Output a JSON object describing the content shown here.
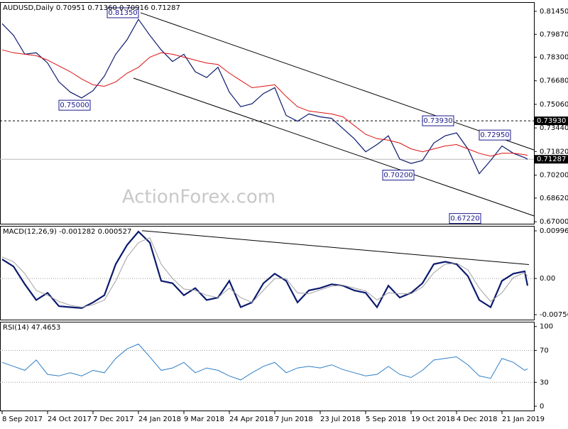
{
  "chart_data": [
    {
      "type": "line",
      "title": "AUDUSD,Daily  0.70951 0.71360 0.70916 0.71287",
      "watermark": "ActionForex.com",
      "x": [
        0,
        8,
        16,
        24,
        32,
        40,
        48,
        56,
        64,
        72,
        80,
        88,
        96,
        104,
        112,
        120,
        128,
        136,
        144,
        152,
        160,
        168,
        176,
        184,
        192,
        200,
        208,
        216,
        224,
        232,
        240,
        248,
        256,
        264,
        272,
        280,
        288,
        296,
        304,
        312,
        320,
        328,
        336,
        344,
        352,
        360,
        368,
        370
      ],
      "xlim": [
        -1.5,
        374.5
      ],
      "xticks": [
        {
          "value": 0,
          "label": "8 Sep 2017"
        },
        {
          "value": 32,
          "label": "24 Oct 2017"
        },
        {
          "value": 64,
          "label": "7 Dec 2017"
        },
        {
          "value": 96,
          "label": "24 Jan 2018"
        },
        {
          "value": 128,
          "label": "9 Mar 2018"
        },
        {
          "value": 160,
          "label": "24 Apr 2018"
        },
        {
          "value": 192,
          "label": "7 Jun 2018"
        },
        {
          "value": 224,
          "label": "23 Jul 2018"
        },
        {
          "value": 256,
          "label": "5 Sep 2018"
        },
        {
          "value": 288,
          "label": "19 Oct 2018"
        },
        {
          "value": 320,
          "label": "4 Dec 2018"
        },
        {
          "value": 352,
          "label": "21 Jan 2019"
        }
      ],
      "ylim": [
        0.6686,
        0.8208
      ],
      "yticks": [
        {
          "value": 0.8145,
          "label": "0.81450"
        },
        {
          "value": 0.7987,
          "label": "0.79870"
        },
        {
          "value": 0.783,
          "label": "0.78300"
        },
        {
          "value": 0.7668,
          "label": "0.76680"
        },
        {
          "value": 0.7506,
          "label": "0.75060"
        },
        {
          "value": 0.7344,
          "label": "0.73440"
        },
        {
          "value": 0.7182,
          "label": "0.71820"
        },
        {
          "value": 0.702,
          "label": "0.70200"
        },
        {
          "value": 0.6862,
          "label": "0.68620"
        },
        {
          "value": 0.67,
          "label": "0.67000"
        }
      ],
      "series": [
        {
          "color": "#0b1a6e",
          "width": 1.2,
          "values": [
            0.806,
            0.798,
            0.785,
            0.786,
            0.779,
            0.766,
            0.759,
            0.755,
            0.76,
            0.77,
            0.785,
            0.795,
            0.809,
            0.798,
            0.788,
            0.78,
            0.785,
            0.773,
            0.769,
            0.776,
            0.759,
            0.749,
            0.751,
            0.758,
            0.762,
            0.743,
            0.739,
            0.744,
            0.742,
            0.741,
            0.734,
            0.727,
            0.718,
            0.723,
            0.729,
            0.713,
            0.71,
            0.712,
            0.724,
            0.729,
            0.731,
            0.72,
            0.703,
            0.712,
            0.722,
            0.717,
            0.714,
            0.71287
          ]
        },
        {
          "color": "#dd1111",
          "width": 1,
          "values": [
            0.788,
            0.786,
            0.785,
            0.784,
            0.781,
            0.777,
            0.773,
            0.768,
            0.764,
            0.763,
            0.766,
            0.772,
            0.776,
            0.783,
            0.786,
            0.785,
            0.783,
            0.781,
            0.779,
            0.778,
            0.772,
            0.767,
            0.762,
            0.763,
            0.764,
            0.756,
            0.749,
            0.746,
            0.745,
            0.744,
            0.742,
            0.736,
            0.73,
            0.727,
            0.726,
            0.724,
            0.72,
            0.718,
            0.72,
            0.722,
            0.723,
            0.72,
            0.717,
            0.715,
            0.717,
            0.717,
            0.716,
            0.7155
          ]
        }
      ],
      "hlines": [
        {
          "value": 0.7393,
          "label": "0.73930",
          "style": "dashed"
        },
        {
          "value": 0.71287,
          "label": "0.71287",
          "style": "solid"
        }
      ],
      "trendlines": [
        {
          "x": [
            97.5,
            376
          ],
          "y": [
            0.8135,
            0.7188
          ]
        },
        {
          "x": [
            92.5,
            376
          ],
          "y": [
            0.7686,
            0.6735
          ]
        }
      ],
      "annotations": [
        {
          "x": 74,
          "value": 0.8135,
          "label": "0.81350"
        },
        {
          "x": 40,
          "value": 0.75,
          "label": "0.75000"
        },
        {
          "x": 296,
          "value": 0.7393,
          "label": "0.73930"
        },
        {
          "x": 336,
          "value": 0.7295,
          "label": "0.72950"
        },
        {
          "x": 268,
          "value": 0.702,
          "label": "0.70200"
        },
        {
          "x": 315,
          "value": 0.6722,
          "label": "0.67220"
        }
      ]
    },
    {
      "type": "line",
      "title": "MACD(12,26,9) -0.001282 0.000527",
      "x": [
        0,
        8,
        16,
        24,
        32,
        40,
        48,
        56,
        64,
        72,
        80,
        88,
        96,
        104,
        112,
        120,
        128,
        136,
        144,
        152,
        160,
        168,
        176,
        184,
        192,
        200,
        208,
        216,
        224,
        232,
        240,
        248,
        256,
        264,
        272,
        280,
        288,
        296,
        304,
        312,
        320,
        328,
        336,
        344,
        352,
        360,
        368,
        370
      ],
      "xlim": [
        -1.5,
        374.5
      ],
      "ylim": [
        -0.0086,
        0.011
      ],
      "yticks": [
        0.009964,
        {
          "value": 0,
          "label": "0.00"
        },
        -0.00756
      ],
      "levels": [
        0
      ],
      "series": [
        {
          "color": "#0b1a6e",
          "width": 2.2,
          "values": [
            0.004,
            0.0025,
            -0.0012,
            -0.0045,
            -0.003,
            -0.0058,
            -0.006,
            -0.0062,
            -0.005,
            -0.0035,
            0.003,
            0.007,
            0.0098,
            0.0075,
            -0.0005,
            -0.001,
            -0.0035,
            -0.002,
            -0.0045,
            -0.004,
            -0.0005,
            -0.006,
            -0.005,
            -0.001,
            0.001,
            -0.0005,
            -0.005,
            -0.0025,
            -0.002,
            -0.0012,
            -0.0015,
            -0.0025,
            -0.003,
            -0.006,
            -0.0015,
            -0.004,
            -0.003,
            -0.001,
            0.003,
            0.0035,
            0.003,
            0.0005,
            -0.0045,
            -0.006,
            -0.0005,
            0.001,
            0.0015,
            -0.0015
          ]
        },
        {
          "color": "#a0a0a0",
          "width": 1,
          "values": [
            0.0045,
            0.0035,
            0.001,
            -0.0025,
            -0.0035,
            -0.0048,
            -0.0056,
            -0.006,
            -0.0055,
            -0.0045,
            -0.0005,
            0.0045,
            0.0075,
            0.0085,
            0.003,
            0,
            -0.0022,
            -0.0025,
            -0.0035,
            -0.004,
            -0.002,
            -0.004,
            -0.005,
            -0.0025,
            0,
            0,
            -0.003,
            -0.0032,
            -0.0024,
            -0.0016,
            -0.0014,
            -0.002,
            -0.0026,
            -0.0045,
            -0.003,
            -0.0032,
            -0.0032,
            -0.0018,
            0.0012,
            0.003,
            0.0032,
            0.0018,
            -0.002,
            -0.0048,
            -0.003,
            0.0002,
            0.0012,
            0.0005
          ]
        }
      ],
      "trendlines": [
        {
          "x": [
            98.5,
            371
          ],
          "y": [
            0.01,
            0.0029
          ]
        }
      ]
    },
    {
      "type": "line",
      "title": "RSI(14) 47.4653",
      "x": [
        0,
        8,
        16,
        24,
        32,
        40,
        48,
        56,
        64,
        72,
        80,
        88,
        96,
        104,
        112,
        120,
        128,
        136,
        144,
        152,
        160,
        168,
        176,
        184,
        192,
        200,
        208,
        216,
        224,
        232,
        240,
        248,
        256,
        264,
        272,
        280,
        288,
        296,
        304,
        312,
        320,
        328,
        336,
        344,
        352,
        360,
        368,
        370
      ],
      "xlim": [
        -1.5,
        374.5
      ],
      "ylim": [
        -5.4,
        106
      ],
      "yticks": [
        100,
        70,
        30,
        0
      ],
      "levels": [
        70,
        30
      ],
      "series": [
        {
          "color": "#2f7fc8",
          "width": 1,
          "values": [
            55,
            50,
            45,
            58,
            40,
            38,
            42,
            38,
            45,
            42,
            60,
            72,
            78,
            62,
            45,
            48,
            55,
            42,
            48,
            45,
            38,
            33,
            42,
            50,
            55,
            42,
            48,
            50,
            48,
            52,
            46,
            42,
            38,
            40,
            50,
            40,
            36,
            45,
            58,
            60,
            62,
            52,
            38,
            35,
            60,
            55,
            45,
            47
          ]
        }
      ]
    }
  ]
}
